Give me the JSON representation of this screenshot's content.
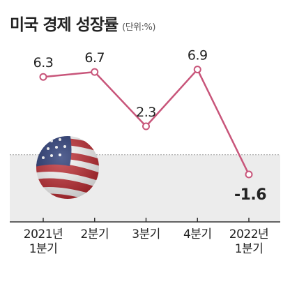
{
  "title": "미국 경제 성장률",
  "unit": "(단위:%)",
  "colors": {
    "line": "#c8557a",
    "zero_band": "#ececec",
    "zero_line": "#9a9a9a",
    "axis": "#333333"
  },
  "icons": {
    "flag_badge": "us-flag-icon"
  },
  "chart_data": {
    "type": "line",
    "title": "미국 경제 성장률",
    "unit": "(단위:%)",
    "categories": [
      "2021년\n1분기",
      "2분기",
      "3분기",
      "4분기",
      "2022년\n1분기"
    ],
    "series": [
      {
        "values": [
          6.3,
          6.7,
          2.3,
          6.9,
          -1.6
        ]
      }
    ],
    "data_labels": [
      "6.3",
      "6.7",
      "2.3",
      "6.9",
      "-1.6"
    ],
    "ylim": [
      -3.2,
      8.2
    ],
    "zero_reference_line": true,
    "grid": false
  }
}
